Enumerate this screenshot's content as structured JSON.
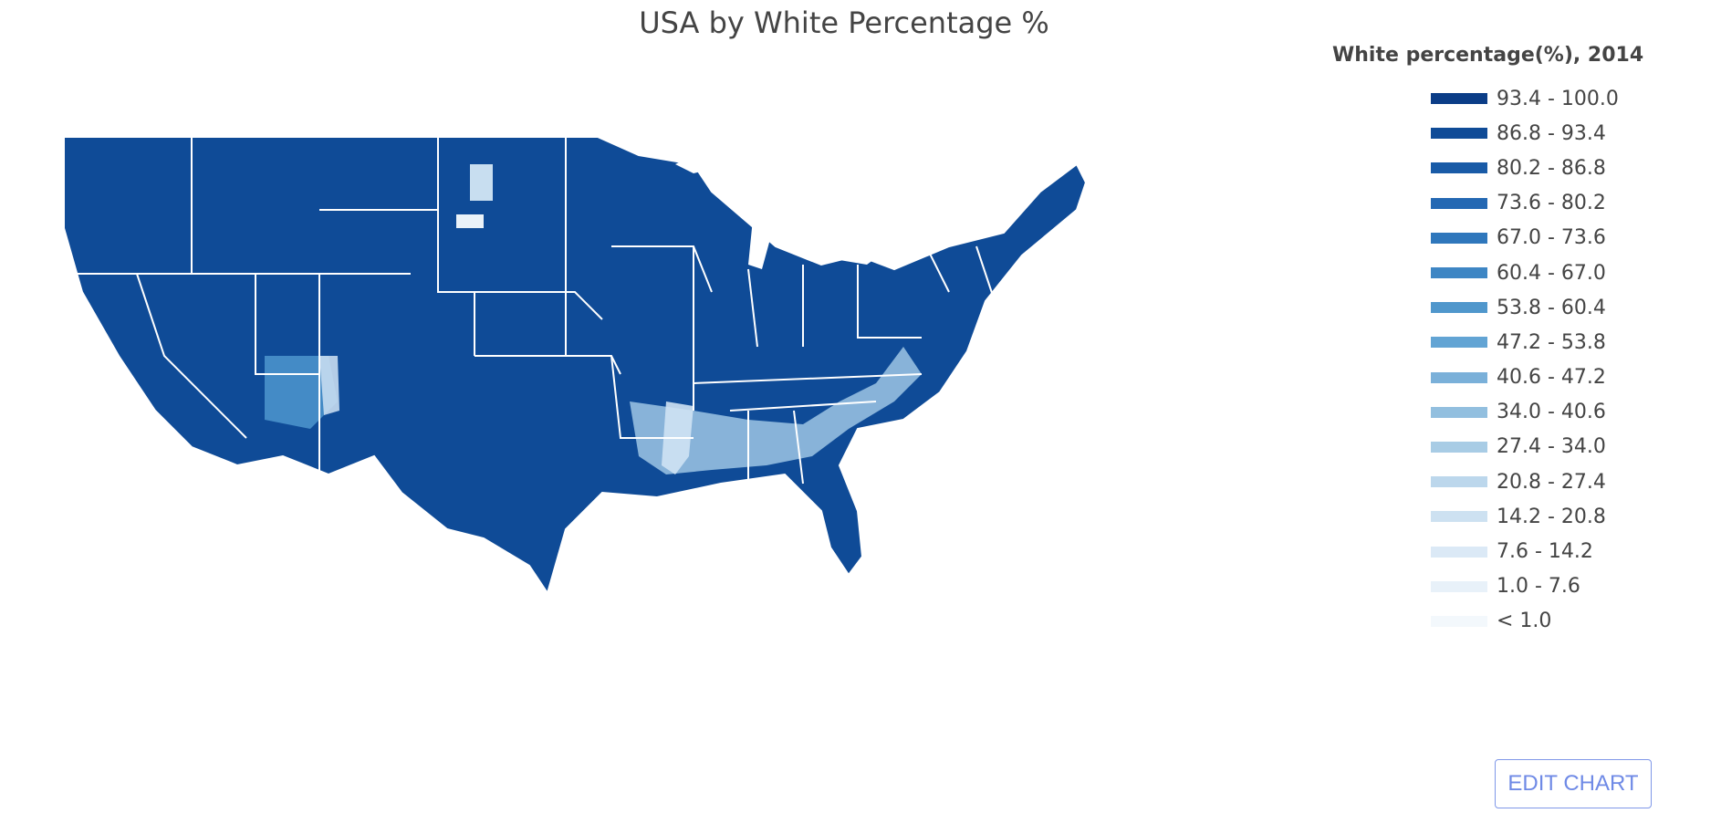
{
  "title": "USA by White Percentage %",
  "legend": {
    "title": "White percentage(%), 2014",
    "items": [
      {
        "label": "93.4 - 100.0",
        "color": "#0b3d87"
      },
      {
        "label": "86.8 - 93.4",
        "color": "#0f4b97"
      },
      {
        "label": "80.2 - 86.8",
        "color": "#195ba7"
      },
      {
        "label": "73.6 - 80.2",
        "color": "#2468b3"
      },
      {
        "label": "67.0 - 73.6",
        "color": "#2f77bc"
      },
      {
        "label": "60.4 - 67.0",
        "color": "#3e86c4"
      },
      {
        "label": "53.8 - 60.4",
        "color": "#5097cc"
      },
      {
        "label": "47.2 - 53.8",
        "color": "#62a4d4"
      },
      {
        "label": "40.6 - 47.2",
        "color": "#7ab0d9"
      },
      {
        "label": "34.0 - 40.6",
        "color": "#92bfdf"
      },
      {
        "label": "27.4 - 34.0",
        "color": "#a8cce5"
      },
      {
        "label": "20.8 - 27.4",
        "color": "#bcd7ec"
      },
      {
        "label": "14.2 - 20.8",
        "color": "#cde1f1"
      },
      {
        "label": "7.6 - 14.2",
        "color": "#dbe9f6"
      },
      {
        "label": "1.0 - 7.6",
        "color": "#e8f1f9"
      },
      {
        "label": "< 1.0",
        "color": "#f3f8fc"
      }
    ]
  },
  "edit_button_label": "EDIT CHART",
  "map": {
    "base_color": "#0f4b97",
    "border_color": "#ffffff",
    "land_outline": "us-contiguous-states"
  }
}
